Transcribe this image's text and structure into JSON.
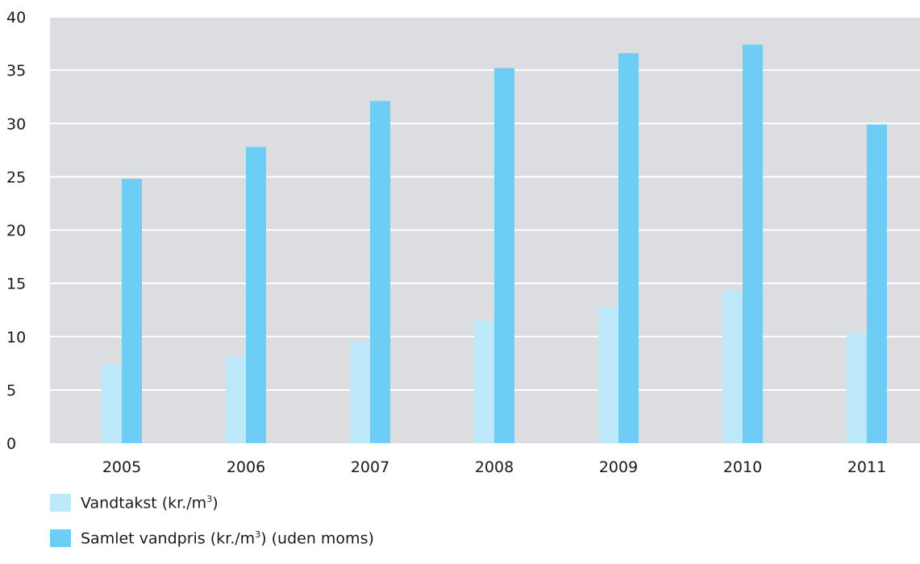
{
  "chart_data": {
    "type": "bar",
    "categories": [
      "2005",
      "2006",
      "2007",
      "2008",
      "2009",
      "2010",
      "2011"
    ],
    "series": [
      {
        "name": "Vandtakst (kr./m3)",
        "values": [
          7.4,
          8.1,
          9.5,
          11.5,
          12.8,
          14.3,
          10.4
        ],
        "color": "#bde8f9"
      },
      {
        "name": "Samlet vandpris (kr./m3) (uden moms)",
        "values": [
          24.8,
          27.8,
          32.1,
          35.2,
          36.6,
          37.4,
          29.9
        ],
        "color": "#6dcdf4"
      }
    ],
    "ylim": [
      0,
      40
    ],
    "yticks": [
      0,
      5,
      10,
      15,
      20,
      25,
      30,
      35,
      40
    ],
    "grid": true,
    "plot_background": "#dcdde0",
    "grid_color": "#ffffff",
    "legend_position": "bottom-left",
    "title": "",
    "xlabel": "",
    "ylabel": ""
  },
  "legend": {
    "item1": {
      "before": "Vandtakst (kr./m",
      "sup": "3",
      "after": ")"
    },
    "item2": {
      "before": "Samlet vandpris (kr./m",
      "sup": "3",
      "after": ") (uden moms)"
    }
  }
}
